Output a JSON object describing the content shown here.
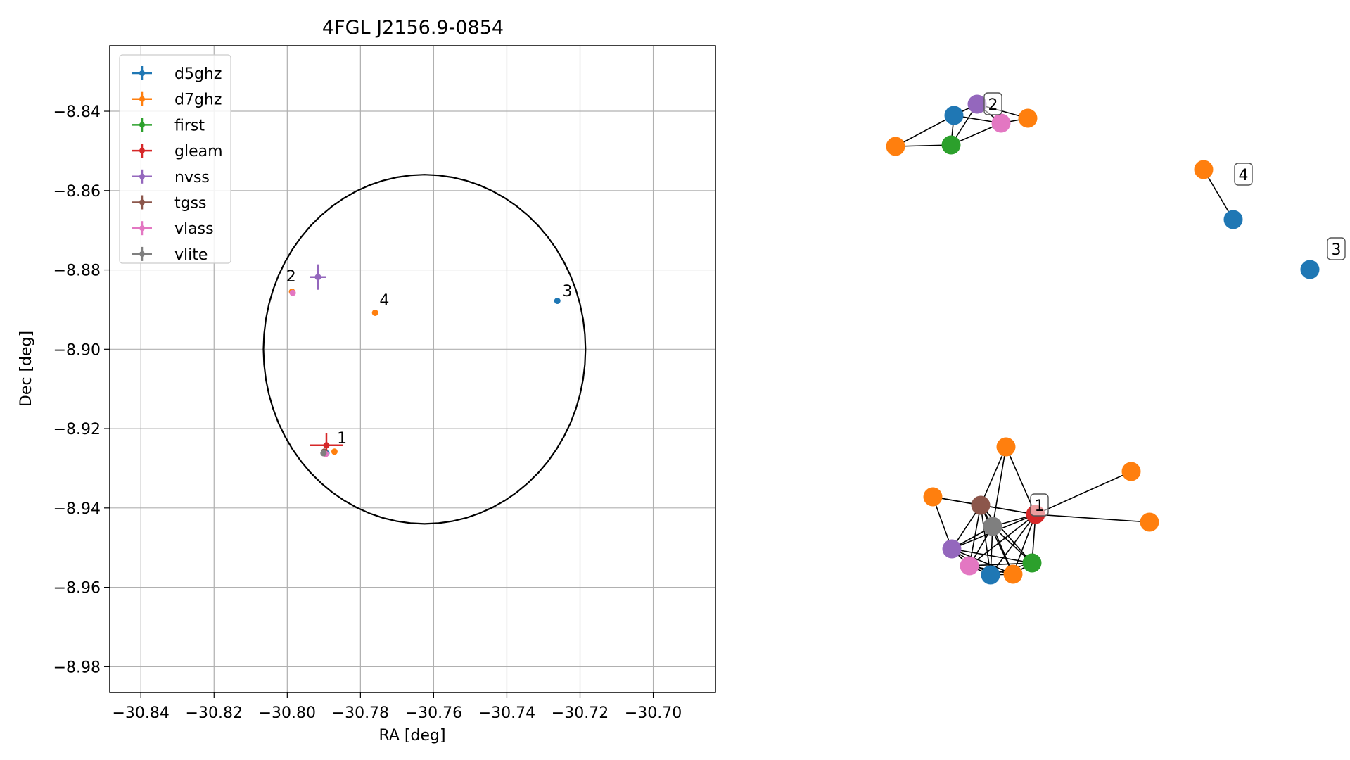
{
  "chart_data": [
    {
      "type": "scatter",
      "title": "4FGL J2156.9-0854",
      "xlabel": "RA [deg]",
      "ylabel": "Dec [deg]",
      "xlim": [
        -30.8485,
        -30.683
      ],
      "ylim": [
        -8.9865,
        -8.8235
      ],
      "x_ticks": [
        -30.84,
        -30.82,
        -30.8,
        -30.78,
        -30.76,
        -30.74,
        -30.72,
        -30.7
      ],
      "x_tick_labels": [
        "−30.84",
        "−30.82",
        "−30.80",
        "−30.78",
        "−30.76",
        "−30.74",
        "−30.72",
        "−30.70"
      ],
      "y_ticks": [
        -8.84,
        -8.86,
        -8.88,
        -8.9,
        -8.92,
        -8.94,
        -8.96,
        -8.98
      ],
      "y_tick_labels": [
        "−8.84",
        "−8.86",
        "−8.88",
        "−8.90",
        "−8.92",
        "−8.94",
        "−8.96",
        "−8.98"
      ],
      "grid": true,
      "legend_position": "top-left",
      "circle": {
        "ra": -30.7625,
        "dec": -8.9,
        "radius": 0.044
      },
      "series": [
        {
          "name": "d5ghz",
          "color": "#1f77b4",
          "points": [
            {
              "x": -30.7893,
              "y": -8.9262
            },
            {
              "x": -30.7262,
              "y": -8.8878
            }
          ]
        },
        {
          "name": "d7ghz",
          "color": "#ff7f0e",
          "points": [
            {
              "x": -30.7871,
              "y": -8.9258
            },
            {
              "x": -30.776,
              "y": -8.8908
            },
            {
              "x": -30.7987,
              "y": -8.8855
            }
          ]
        },
        {
          "name": "first",
          "color": "#2ca02c",
          "points": [
            {
              "x": -30.7897,
              "y": -8.9262
            }
          ]
        },
        {
          "name": "gleam",
          "color": "#d62728",
          "points": [
            {
              "x": -30.7893,
              "y": -8.9242
            }
          ],
          "xerr": 0.0045,
          "yerr": 0.003
        },
        {
          "name": "nvss",
          "color": "#9467bd",
          "points": [
            {
              "x": -30.7916,
              "y": -8.8818
            }
          ],
          "xerr": 0.0022,
          "yerr": 0.0032
        },
        {
          "name": "tgss",
          "color": "#8c564b",
          "points": [
            {
              "x": -30.7899,
              "y": -8.9258
            }
          ]
        },
        {
          "name": "vlass",
          "color": "#e377c2",
          "points": [
            {
              "x": -30.7895,
              "y": -8.9264
            },
            {
              "x": -30.7985,
              "y": -8.8858
            }
          ]
        },
        {
          "name": "vlite",
          "color": "#7f7f7f",
          "points": [
            {
              "x": -30.7901,
              "y": -8.9262
            }
          ]
        }
      ],
      "annotations": [
        {
          "text": "1",
          "x": -30.7864,
          "y": -8.9223
        },
        {
          "text": "2",
          "x": -30.8003,
          "y": -8.8815
        },
        {
          "text": "3",
          "x": -30.7248,
          "y": -8.8852
        },
        {
          "text": "4",
          "x": -30.7748,
          "y": -8.8875
        }
      ]
    },
    {
      "type": "network",
      "cluster_labels": [
        "1",
        "2",
        "3",
        "4"
      ]
    }
  ]
}
